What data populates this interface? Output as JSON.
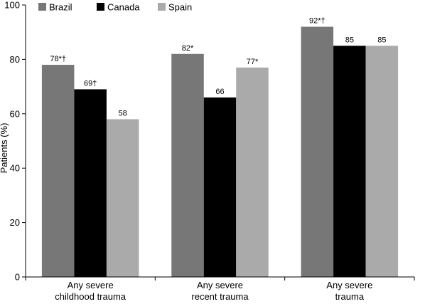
{
  "chart_data": {
    "type": "bar",
    "categories": [
      [
        "Any severe",
        "childhood trauma"
      ],
      [
        "Any severe",
        "recent trauma"
      ],
      [
        "Any severe",
        "trauma"
      ]
    ],
    "series": [
      {
        "name": "Brazil",
        "color": "#777777",
        "values": [
          78,
          82,
          92
        ],
        "labels": [
          "78*†",
          "82*",
          "92*†"
        ]
      },
      {
        "name": "Canada",
        "color": "#000000",
        "values": [
          69,
          66,
          85
        ],
        "labels": [
          "69†",
          "66",
          "85"
        ]
      },
      {
        "name": "Spain",
        "color": "#aaaaaa",
        "values": [
          58,
          77,
          85
        ],
        "labels": [
          "58",
          "77*",
          "85"
        ]
      }
    ],
    "ylabel": "Patients (%)",
    "ylim": [
      0,
      100
    ],
    "yticks": [
      0,
      20,
      40,
      60,
      80,
      100
    ],
    "grid": false,
    "legend_position": "top-left"
  }
}
